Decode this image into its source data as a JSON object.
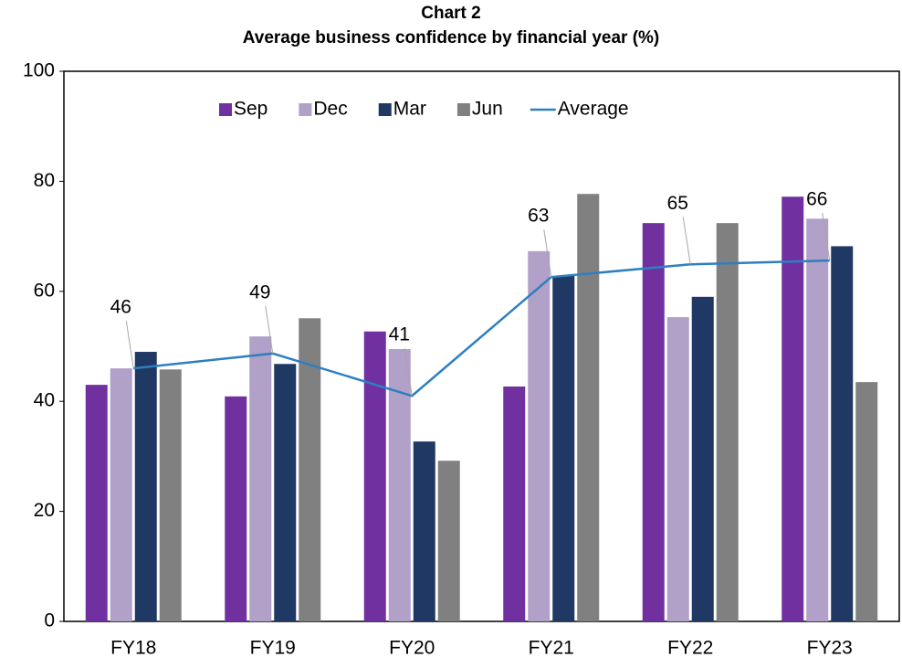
{
  "chart_data": {
    "type": "bar",
    "title": "Chart 2",
    "subtitle": "Average business confidence by financial year (%)",
    "categories": [
      "FY18",
      "FY19",
      "FY20",
      "FY21",
      "FY22",
      "FY23"
    ],
    "series": [
      {
        "name": "Sep",
        "color": "#7030a0",
        "values": [
          43.0,
          40.9,
          52.7,
          42.7,
          72.4,
          77.2
        ]
      },
      {
        "name": "Dec",
        "color": "#b1a0c7",
        "values": [
          46.0,
          51.8,
          49.5,
          67.3,
          55.3,
          73.2
        ]
      },
      {
        "name": "Mar",
        "color": "#203864",
        "values": [
          49.0,
          46.8,
          32.7,
          62.8,
          59.0,
          68.2
        ]
      },
      {
        "name": "Jun",
        "color": "#808080",
        "values": [
          45.8,
          55.1,
          29.2,
          77.7,
          72.4,
          43.5
        ]
      },
      {
        "name": "Average",
        "type": "line",
        "color": "#2e7fc1",
        "values": [
          46.0,
          48.7,
          41.0,
          62.6,
          64.9,
          65.6
        ],
        "value_labels": [
          "46",
          "49",
          "41",
          "63",
          "65",
          "66"
        ]
      }
    ],
    "ylim": [
      0,
      100
    ],
    "yticks": [
      0,
      20,
      40,
      60,
      80,
      100
    ],
    "legend": "top"
  }
}
